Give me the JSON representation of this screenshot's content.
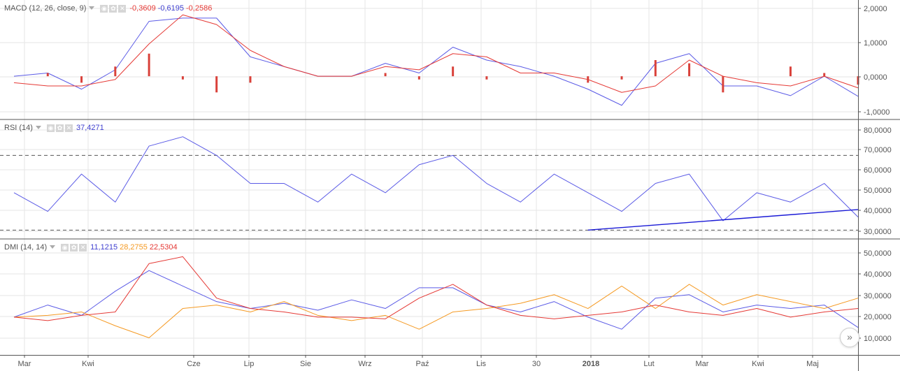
{
  "panes": [
    {
      "key": "macd",
      "name": "MACD (12, 26, close, 9)",
      "values": [
        {
          "text": "-0,3609",
          "color": "#e53935"
        },
        {
          "text": "-0,6195",
          "color": "#3f3fcf"
        },
        {
          "text": "-0,2586",
          "color": "#e53935"
        }
      ],
      "axis_ticks": [
        "2,0000",
        "1,0000",
        "0,0000",
        "-1,0000"
      ]
    },
    {
      "key": "rsi",
      "name": "RSI (14)",
      "values": [
        {
          "text": "37,4271",
          "color": "#3f3fcf"
        }
      ],
      "axis_ticks": [
        "80,0000",
        "70,0000",
        "60,0000",
        "50,0000",
        "40,0000",
        "30,0000"
      ]
    },
    {
      "key": "dmi",
      "name": "DMI (14, 14)",
      "values": [
        {
          "text": "11,1215",
          "color": "#3f3fcf"
        },
        {
          "text": "28,2755",
          "color": "#f59a23"
        },
        {
          "text": "22,5304",
          "color": "#e53935"
        }
      ],
      "axis_ticks": [
        "50,0000",
        "40,0000",
        "30,0000",
        "20,0000",
        "10,0000"
      ]
    }
  ],
  "x_axis_labels": [
    "Mar",
    "Kwi",
    "Cze",
    "Lip",
    "Sie",
    "Wrz",
    "Paź",
    "Lis",
    "30",
    "2018",
    "Lut",
    "Mar",
    "Kwi",
    "Maj"
  ],
  "nav_button_icon": "double-chevron-right-icon",
  "colors": {
    "blue": "#5b5be6",
    "red": "#e53935",
    "orange": "#f5a04a",
    "grid": "#e6e6e6"
  },
  "chart_data": [
    {
      "type": "line",
      "title": "MACD (12, 26, close, 9)",
      "ylim": [
        -1.1,
        2.1
      ],
      "x": [
        0,
        4,
        8,
        12,
        16,
        20,
        24,
        28,
        32,
        36,
        40,
        44,
        48,
        52,
        56,
        60,
        64,
        68,
        72,
        76,
        80,
        84,
        88,
        92,
        96,
        100
      ],
      "series": [
        {
          "color": "#5b5be6",
          "values": [
            0.0,
            0.1,
            -0.4,
            0.2,
            1.7,
            1.8,
            1.8,
            0.6,
            0.3,
            0.0,
            0.0,
            0.4,
            0.1,
            0.9,
            0.5,
            0.3,
            0.0,
            -0.4,
            -0.9,
            0.4,
            0.7,
            -0.3,
            -0.3,
            -0.6,
            0.0,
            -0.62
          ]
        },
        {
          "color": "#e53935",
          "values": [
            -0.2,
            -0.3,
            -0.3,
            -0.1,
            1.0,
            1.9,
            1.6,
            0.8,
            0.3,
            0.0,
            0.0,
            0.3,
            0.2,
            0.7,
            0.6,
            0.1,
            0.1,
            -0.1,
            -0.5,
            -0.3,
            0.5,
            0.0,
            -0.2,
            -0.3,
            0.0,
            -0.36
          ]
        },
        {
          "type": "bar",
          "color": "#d9413a",
          "values": [
            0.0,
            0.1,
            -0.2,
            0.3,
            0.7,
            -0.1,
            -0.5,
            -0.2,
            0.0,
            0.0,
            0.0,
            0.1,
            -0.1,
            0.3,
            -0.1,
            0.0,
            0.0,
            -0.2,
            -0.1,
            0.5,
            0.4,
            -0.5,
            0.0,
            0.3,
            0.1,
            -0.26
          ]
        }
      ]
    },
    {
      "type": "line",
      "title": "RSI (14)",
      "ylim": [
        29,
        84
      ],
      "reference_lines": [
        70,
        30
      ],
      "x": [
        0,
        4,
        8,
        12,
        16,
        20,
        24,
        28,
        32,
        36,
        40,
        44,
        48,
        52,
        56,
        60,
        64,
        68,
        72,
        76,
        80,
        84,
        88,
        92,
        96,
        100
      ],
      "series": [
        {
          "color": "#5b5be6",
          "values": [
            50,
            40,
            60,
            45,
            75,
            80,
            70,
            55,
            55,
            45,
            60,
            50,
            65,
            70,
            55,
            45,
            60,
            50,
            40,
            55,
            60,
            35,
            50,
            45,
            55,
            37
          ]
        },
        {
          "color": "#1a1ad6",
          "values_xy": [
            [
              68,
              30
            ],
            [
              100,
              41
            ]
          ]
        }
      ]
    },
    {
      "type": "line",
      "title": "DMI (14, 14)",
      "ylim": [
        4,
        55
      ],
      "x": [
        0,
        4,
        8,
        12,
        16,
        20,
        24,
        28,
        32,
        36,
        40,
        44,
        48,
        52,
        56,
        60,
        64,
        68,
        72,
        76,
        80,
        84,
        88,
        92,
        96,
        100
      ],
      "series": [
        {
          "color": "#5b5be6",
          "values": [
            17,
            24,
            18,
            32,
            44,
            35,
            26,
            22,
            25,
            21,
            27,
            22,
            34,
            34,
            24,
            20,
            26,
            17,
            10,
            28,
            30,
            20,
            24,
            22,
            24,
            11
          ]
        },
        {
          "color": "#f59a23",
          "values": [
            17,
            18,
            20,
            12,
            5,
            22,
            24,
            20,
            26,
            18,
            15,
            18,
            10,
            20,
            22,
            25,
            30,
            22,
            35,
            22,
            36,
            24,
            30,
            26,
            22,
            28
          ]
        },
        {
          "color": "#e53935",
          "values": [
            17,
            15,
            18,
            20,
            48,
            52,
            28,
            22,
            20,
            17,
            17,
            16,
            28,
            36,
            24,
            18,
            16,
            18,
            20,
            24,
            20,
            18,
            22,
            17,
            20,
            22
          ]
        }
      ]
    }
  ]
}
